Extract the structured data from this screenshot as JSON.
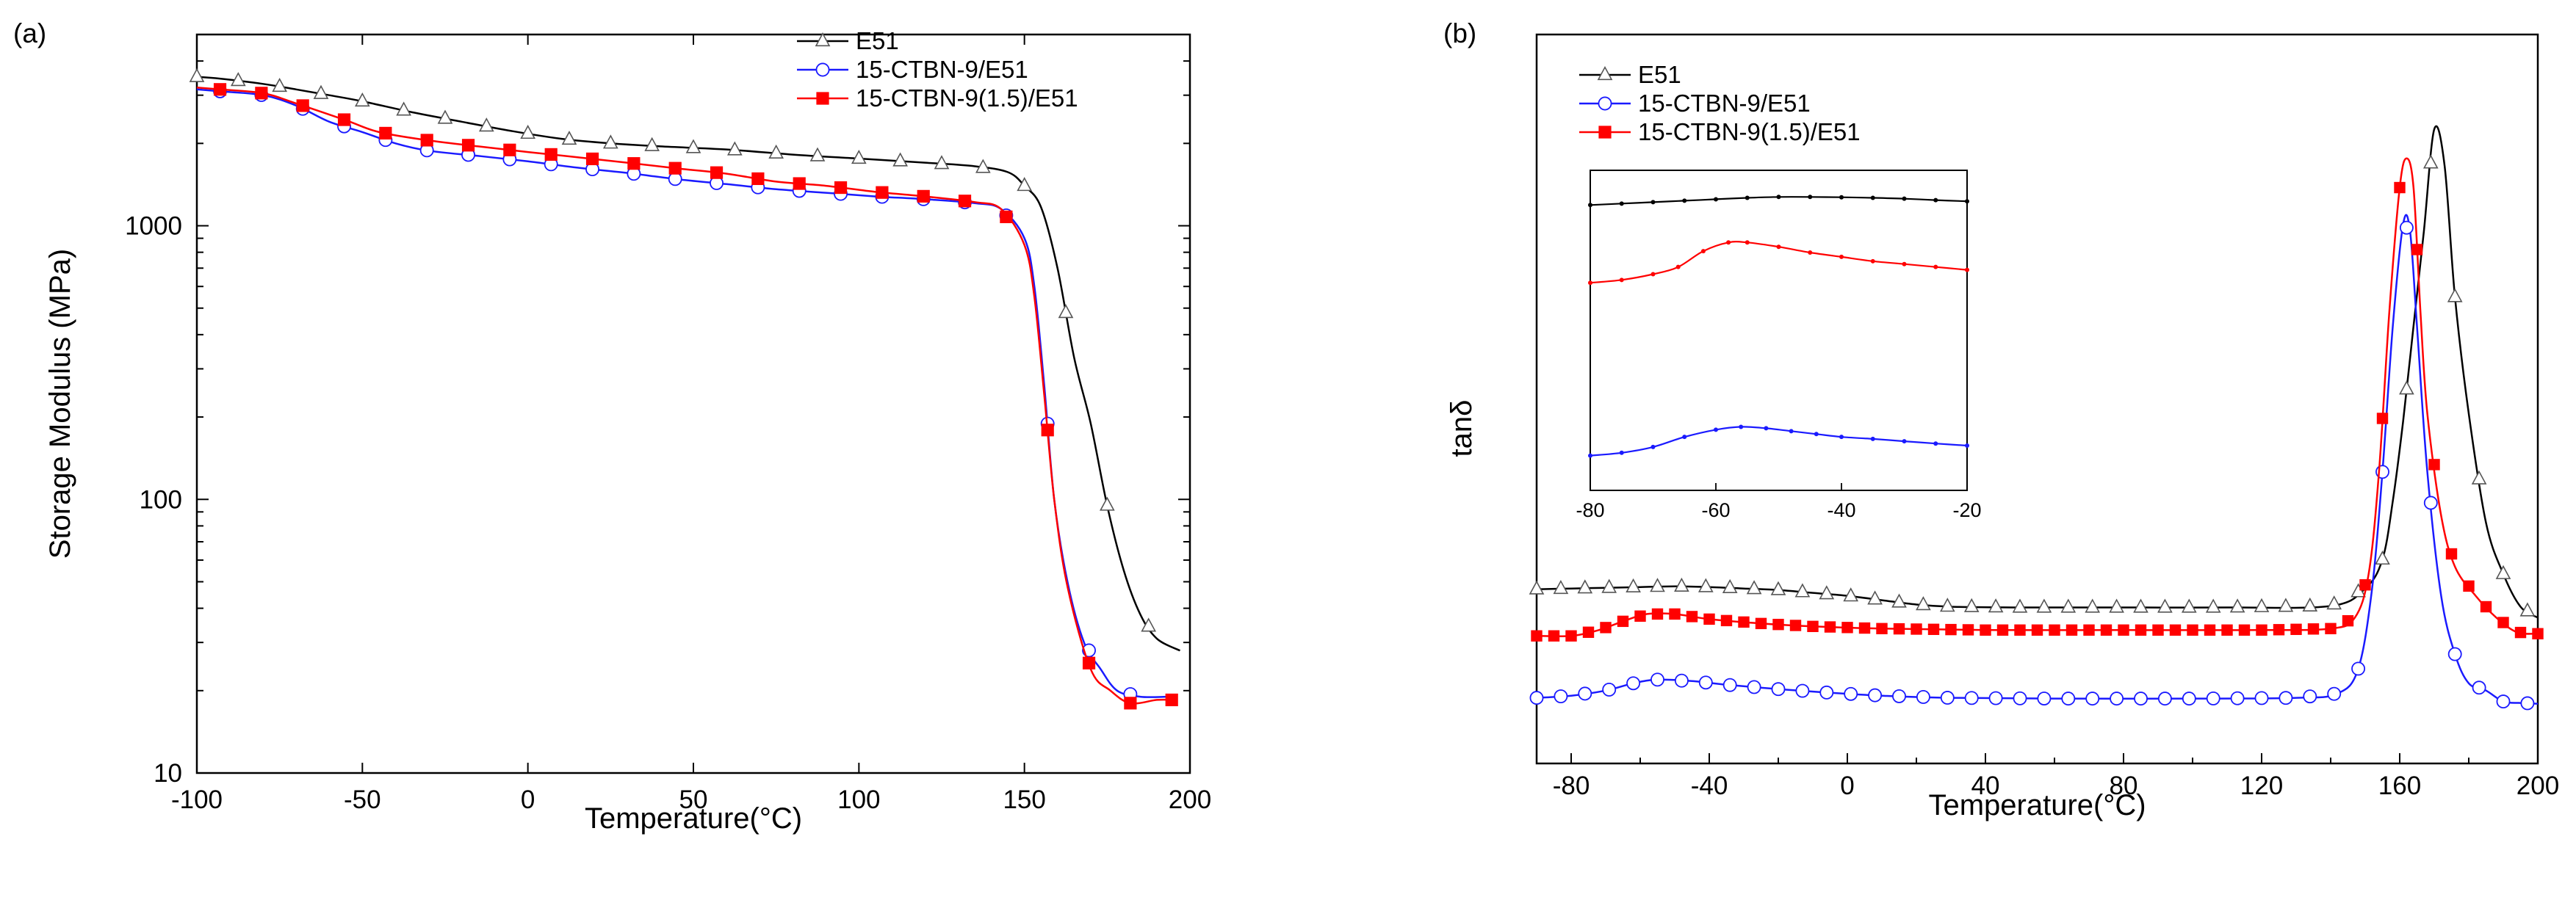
{
  "colors": {
    "E51": "#000000",
    "CTBN": "#1a1aff",
    "CTBN15": "#ff0000"
  },
  "chart_data": [
    {
      "type": "line",
      "panel_label": "(a)",
      "xlabel": "Temperature(°C)",
      "ylabel": "Storage Modulus (MPa)",
      "yscale": "log",
      "xlim": [
        -100,
        200
      ],
      "ylim": [
        10,
        5000
      ],
      "xticks": [
        -100,
        -50,
        0,
        50,
        100,
        150,
        200
      ],
      "xtick_labels": [
        "-100",
        "-50",
        "0",
        "50",
        "100",
        "150",
        "200"
      ],
      "yticks": [
        10,
        100,
        1000
      ],
      "ytick_labels": [
        "10",
        "100",
        "1000"
      ],
      "legend": [
        "E51",
        "15-CTBN-9/E51",
        "15-CTBN-9(1.5)/E51"
      ],
      "series": [
        {
          "name": "E51",
          "marker": "triangle",
          "color_key": "E51",
          "points": [
            [
              -100,
              3500
            ],
            [
              -93,
              3450
            ],
            [
              -80,
              3300
            ],
            [
              -70,
              3150
            ],
            [
              -60,
              3000
            ],
            [
              -50,
              2850
            ],
            [
              -35,
              2600
            ],
            [
              -20,
              2400
            ],
            [
              -5,
              2220
            ],
            [
              10,
              2080
            ],
            [
              25,
              2000
            ],
            [
              40,
              1950
            ],
            [
              60,
              1900
            ],
            [
              80,
              1820
            ],
            [
              100,
              1760
            ],
            [
              120,
              1700
            ],
            [
              135,
              1650
            ],
            [
              145,
              1570
            ],
            [
              150,
              1400
            ],
            [
              155,
              1170
            ],
            [
              160,
              700
            ],
            [
              165,
              330
            ],
            [
              170,
              190
            ],
            [
              175,
              95
            ],
            [
              180,
              55
            ],
            [
              185,
              38
            ],
            [
              190,
              31
            ],
            [
              197,
              28
            ]
          ]
        },
        {
          "name": "15-CTBN-9/E51",
          "marker": "circle",
          "color_key": "CTBN",
          "points": [
            [
              -100,
              3150
            ],
            [
              -93,
              3100
            ],
            [
              -80,
              3000
            ],
            [
              -70,
              2750
            ],
            [
              -60,
              2400
            ],
            [
              -50,
              2200
            ],
            [
              -40,
              2000
            ],
            [
              -30,
              1880
            ],
            [
              -15,
              1800
            ],
            [
              0,
              1720
            ],
            [
              15,
              1630
            ],
            [
              30,
              1560
            ],
            [
              45,
              1480
            ],
            [
              60,
              1420
            ],
            [
              75,
              1360
            ],
            [
              90,
              1320
            ],
            [
              105,
              1280
            ],
            [
              120,
              1250
            ],
            [
              135,
              1210
            ],
            [
              143,
              1150
            ],
            [
              150,
              900
            ],
            [
              153,
              600
            ],
            [
              156,
              260
            ],
            [
              159,
              100
            ],
            [
              163,
              50
            ],
            [
              168,
              30
            ],
            [
              173,
              24
            ],
            [
              178,
              20
            ],
            [
              185,
              19
            ],
            [
              193,
              19
            ]
          ]
        },
        {
          "name": "15-CTBN-9(1.5)/E51",
          "marker": "square",
          "color_key": "CTBN15",
          "points": [
            [
              -100,
              3200
            ],
            [
              -93,
              3150
            ],
            [
              -80,
              3050
            ],
            [
              -70,
              2800
            ],
            [
              -55,
              2430
            ],
            [
              -45,
              2200
            ],
            [
              -30,
              2050
            ],
            [
              -15,
              1950
            ],
            [
              0,
              1860
            ],
            [
              15,
              1780
            ],
            [
              30,
              1700
            ],
            [
              45,
              1620
            ],
            [
              60,
              1550
            ],
            [
              75,
              1450
            ],
            [
              90,
              1400
            ],
            [
              105,
              1330
            ],
            [
              120,
              1280
            ],
            [
              135,
              1220
            ],
            [
              143,
              1150
            ],
            [
              150,
              850
            ],
            [
              153,
              550
            ],
            [
              156,
              240
            ],
            [
              159,
              100
            ],
            [
              163,
              48
            ],
            [
              170,
              24
            ],
            [
              176,
              20
            ],
            [
              182,
              18
            ],
            [
              190,
              18.5
            ],
            [
              195,
              18.5
            ]
          ]
        }
      ]
    },
    {
      "type": "line",
      "panel_label": "(b)",
      "xlabel": "Temperature(°C)",
      "ylabel": "tanδ",
      "xlim": [
        -90,
        200
      ],
      "ylim": [
        0,
        1
      ],
      "xticks": [
        -80,
        -40,
        0,
        40,
        80,
        120,
        160,
        200
      ],
      "xtick_labels": [
        "-80",
        "-40",
        "0",
        "40",
        "80",
        "120",
        "160",
        "200"
      ],
      "legend": [
        "E51",
        "15-CTBN-9/E51",
        "15-CTBN-9(1.5)/E51"
      ],
      "series": [
        {
          "name": "E51",
          "marker": "triangle",
          "color_key": "E51",
          "points": [
            [
              -90,
              0.239
            ],
            [
              -80,
              0.24
            ],
            [
              -70,
              0.241
            ],
            [
              -60,
              0.242
            ],
            [
              -50,
              0.243
            ],
            [
              -40,
              0.242
            ],
            [
              -30,
              0.24
            ],
            [
              -20,
              0.238
            ],
            [
              -10,
              0.234
            ],
            [
              0,
              0.23
            ],
            [
              10,
              0.224
            ],
            [
              20,
              0.218
            ],
            [
              30,
              0.215
            ],
            [
              50,
              0.214
            ],
            [
              80,
              0.214
            ],
            [
              110,
              0.214
            ],
            [
              140,
              0.216
            ],
            [
              150,
              0.24
            ],
            [
              155,
              0.28
            ],
            [
              158,
              0.36
            ],
            [
              161,
              0.47
            ],
            [
              164,
              0.6
            ],
            [
              167,
              0.73
            ],
            [
              170,
              0.87
            ],
            [
              173,
              0.82
            ],
            [
              176,
              0.64
            ],
            [
              180,
              0.48
            ],
            [
              185,
              0.33
            ],
            [
              190,
              0.26
            ],
            [
              195,
              0.215
            ],
            [
              200,
              0.2
            ]
          ]
        },
        {
          "name": "15-CTBN-9/E51",
          "marker": "circle",
          "color_key": "CTBN",
          "points": [
            [
              -90,
              0.09
            ],
            [
              -80,
              0.093
            ],
            [
              -70,
              0.1
            ],
            [
              -62,
              0.11
            ],
            [
              -55,
              0.115
            ],
            [
              -45,
              0.113
            ],
            [
              -35,
              0.108
            ],
            [
              -20,
              0.102
            ],
            [
              -5,
              0.097
            ],
            [
              10,
              0.093
            ],
            [
              30,
              0.09
            ],
            [
              60,
              0.089
            ],
            [
              100,
              0.089
            ],
            [
              130,
              0.09
            ],
            [
              142,
              0.096
            ],
            [
              148,
              0.13
            ],
            [
              152,
              0.24
            ],
            [
              155,
              0.4
            ],
            [
              158,
              0.6
            ],
            [
              161,
              0.74
            ],
            [
              163,
              0.73
            ],
            [
              165,
              0.6
            ],
            [
              168,
              0.4
            ],
            [
              172,
              0.23
            ],
            [
              176,
              0.15
            ],
            [
              180,
              0.11
            ],
            [
              185,
              0.1
            ],
            [
              190,
              0.085
            ],
            [
              195,
              0.083
            ],
            [
              200,
              0.082
            ]
          ]
        },
        {
          "name": "15-CTBN-9(1.5)/E51",
          "marker": "square",
          "color_key": "CTBN15",
          "points": [
            [
              -90,
              0.175
            ],
            [
              -80,
              0.175
            ],
            [
              -72,
              0.183
            ],
            [
              -65,
              0.195
            ],
            [
              -58,
              0.205
            ],
            [
              -50,
              0.205
            ],
            [
              -40,
              0.198
            ],
            [
              -25,
              0.192
            ],
            [
              -10,
              0.188
            ],
            [
              10,
              0.185
            ],
            [
              40,
              0.183
            ],
            [
              80,
              0.183
            ],
            [
              120,
              0.183
            ],
            [
              140,
              0.185
            ],
            [
              147,
              0.2
            ],
            [
              151,
              0.26
            ],
            [
              154,
              0.4
            ],
            [
              157,
              0.62
            ],
            [
              160,
              0.79
            ],
            [
              162,
              0.83
            ],
            [
              164,
              0.79
            ],
            [
              166,
              0.62
            ],
            [
              168,
              0.48
            ],
            [
              172,
              0.34
            ],
            [
              176,
              0.27
            ],
            [
              182,
              0.23
            ],
            [
              188,
              0.2
            ],
            [
              194,
              0.18
            ],
            [
              200,
              0.178
            ]
          ]
        }
      ],
      "inset": {
        "xlim": [
          -80,
          -20
        ],
        "xticks": [
          -80,
          -60,
          -40,
          -20
        ],
        "xtick_labels": [
          "-80",
          "-60",
          "-40",
          "-20"
        ],
        "series": [
          {
            "name": "E51",
            "color_key": "E51",
            "points": [
              [
                -80,
                0.96
              ],
              [
                -75,
                0.965
              ],
              [
                -70,
                0.97
              ],
              [
                -65,
                0.975
              ],
              [
                -60,
                0.98
              ],
              [
                -55,
                0.985
              ],
              [
                -50,
                0.988
              ],
              [
                -45,
                0.988
              ],
              [
                -40,
                0.987
              ],
              [
                -35,
                0.985
              ],
              [
                -30,
                0.982
              ],
              [
                -25,
                0.977
              ],
              [
                -20,
                0.973
              ]
            ]
          },
          {
            "name": "15-CTBN-9(1.5)/E51",
            "color_key": "CTBN15",
            "points": [
              [
                -80,
                0.69
              ],
              [
                -75,
                0.7
              ],
              [
                -70,
                0.72
              ],
              [
                -66,
                0.745
              ],
              [
                -62,
                0.8
              ],
              [
                -58,
                0.83
              ],
              [
                -55,
                0.83
              ],
              [
                -50,
                0.815
              ],
              [
                -45,
                0.795
              ],
              [
                -40,
                0.78
              ],
              [
                -35,
                0.765
              ],
              [
                -30,
                0.755
              ],
              [
                -25,
                0.745
              ],
              [
                -20,
                0.735
              ]
            ]
          },
          {
            "name": "15-CTBN-9/E51",
            "color_key": "CTBN",
            "points": [
              [
                -80,
                0.09
              ],
              [
                -75,
                0.1
              ],
              [
                -70,
                0.12
              ],
              [
                -65,
                0.155
              ],
              [
                -60,
                0.18
              ],
              [
                -56,
                0.19
              ],
              [
                -52,
                0.185
              ],
              [
                -48,
                0.175
              ],
              [
                -44,
                0.165
              ],
              [
                -40,
                0.155
              ],
              [
                -35,
                0.148
              ],
              [
                -30,
                0.14
              ],
              [
                -25,
                0.132
              ],
              [
                -20,
                0.125
              ]
            ]
          }
        ]
      }
    }
  ]
}
